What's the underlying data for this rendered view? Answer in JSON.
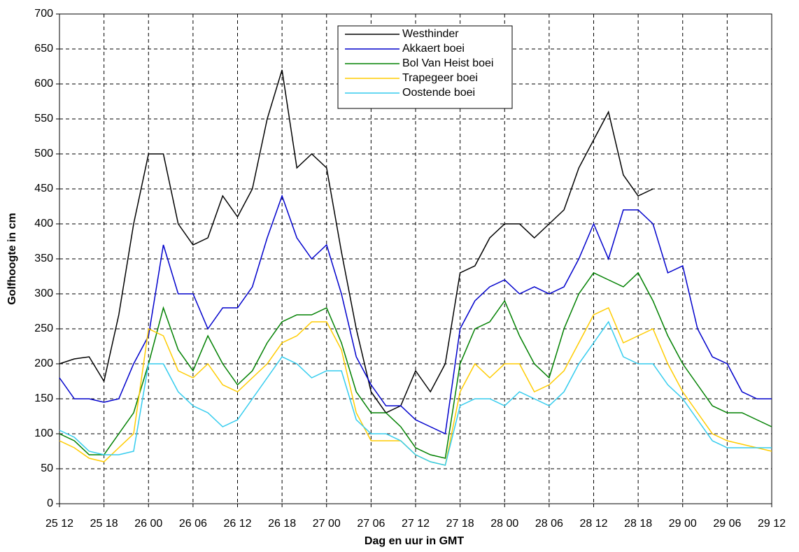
{
  "chart_data": {
    "type": "line",
    "x_label": "Dag en uur in GMT",
    "y_label": "Golfhoogte in cm",
    "categories": [
      "25 12",
      null,
      null,
      "25 18",
      null,
      null,
      "26 00",
      null,
      null,
      "26 06",
      null,
      null,
      "26 12",
      null,
      null,
      "26 18",
      null,
      null,
      "27 00",
      null,
      null,
      "27 06",
      null,
      null,
      "27 12",
      null,
      null,
      "27 18",
      null,
      null,
      "28 00",
      null,
      null,
      "28 06",
      null,
      null,
      "28 12",
      null,
      null,
      "28 18",
      null,
      null,
      "29 00",
      null,
      null,
      "29 06",
      null,
      null,
      "29 12"
    ],
    "series": [
      {
        "name": "Westhinder",
        "color": "#000000",
        "values": [
          200,
          207,
          210,
          175,
          270,
          400,
          500,
          500,
          400,
          370,
          380,
          440,
          410,
          450,
          550,
          620,
          480,
          500,
          480,
          360,
          250,
          160,
          130,
          140,
          190,
          160,
          200,
          330,
          340,
          380,
          400,
          400,
          380,
          400,
          420,
          480,
          520,
          560,
          470,
          440,
          450,
          null,
          null,
          null,
          null,
          null,
          null,
          null,
          null
        ]
      },
      {
        "name": "Akkaert boei",
        "color": "#0000cc",
        "values": [
          180,
          150,
          150,
          145,
          150,
          200,
          240,
          370,
          300,
          300,
          250,
          280,
          280,
          310,
          380,
          440,
          380,
          350,
          370,
          300,
          210,
          170,
          140,
          140,
          120,
          110,
          100,
          250,
          290,
          310,
          320,
          300,
          310,
          300,
          310,
          350,
          400,
          350,
          420,
          420,
          400,
          330,
          340,
          250,
          210,
          200,
          160,
          150,
          150
        ]
      },
      {
        "name": "Bol Van Heist boei",
        "color": "#008000",
        "values": [
          100,
          90,
          70,
          70,
          100,
          130,
          200,
          280,
          220,
          190,
          240,
          200,
          170,
          190,
          230,
          260,
          270,
          270,
          280,
          230,
          160,
          130,
          130,
          110,
          80,
          70,
          65,
          200,
          250,
          260,
          290,
          240,
          200,
          180,
          250,
          300,
          330,
          320,
          310,
          330,
          290,
          240,
          200,
          170,
          140,
          130,
          130,
          120,
          110
        ]
      },
      {
        "name": "Trapegeer boei",
        "color": "#ffcc00",
        "values": [
          90,
          80,
          65,
          60,
          80,
          100,
          250,
          240,
          190,
          180,
          200,
          170,
          160,
          180,
          200,
          230,
          240,
          260,
          260,
          220,
          130,
          90,
          90,
          90,
          70,
          60,
          55,
          160,
          200,
          180,
          200,
          200,
          160,
          170,
          190,
          230,
          270,
          280,
          230,
          240,
          250,
          200,
          160,
          130,
          100,
          90,
          85,
          80,
          75
        ]
      },
      {
        "name": "Oostende boei",
        "color": "#33ccee",
        "values": [
          105,
          95,
          75,
          70,
          70,
          75,
          200,
          200,
          160,
          140,
          130,
          110,
          120,
          150,
          180,
          210,
          200,
          180,
          190,
          190,
          120,
          100,
          100,
          90,
          70,
          60,
          55,
          140,
          150,
          150,
          140,
          160,
          150,
          140,
          160,
          200,
          230,
          260,
          210,
          200,
          200,
          170,
          150,
          120,
          90,
          80,
          80,
          80,
          80
        ]
      }
    ],
    "ylim": [
      0,
      700
    ],
    "yticks": [
      0,
      50,
      100,
      150,
      200,
      250,
      300,
      350,
      400,
      450,
      500,
      550,
      600,
      650,
      700
    ],
    "grid": true
  }
}
